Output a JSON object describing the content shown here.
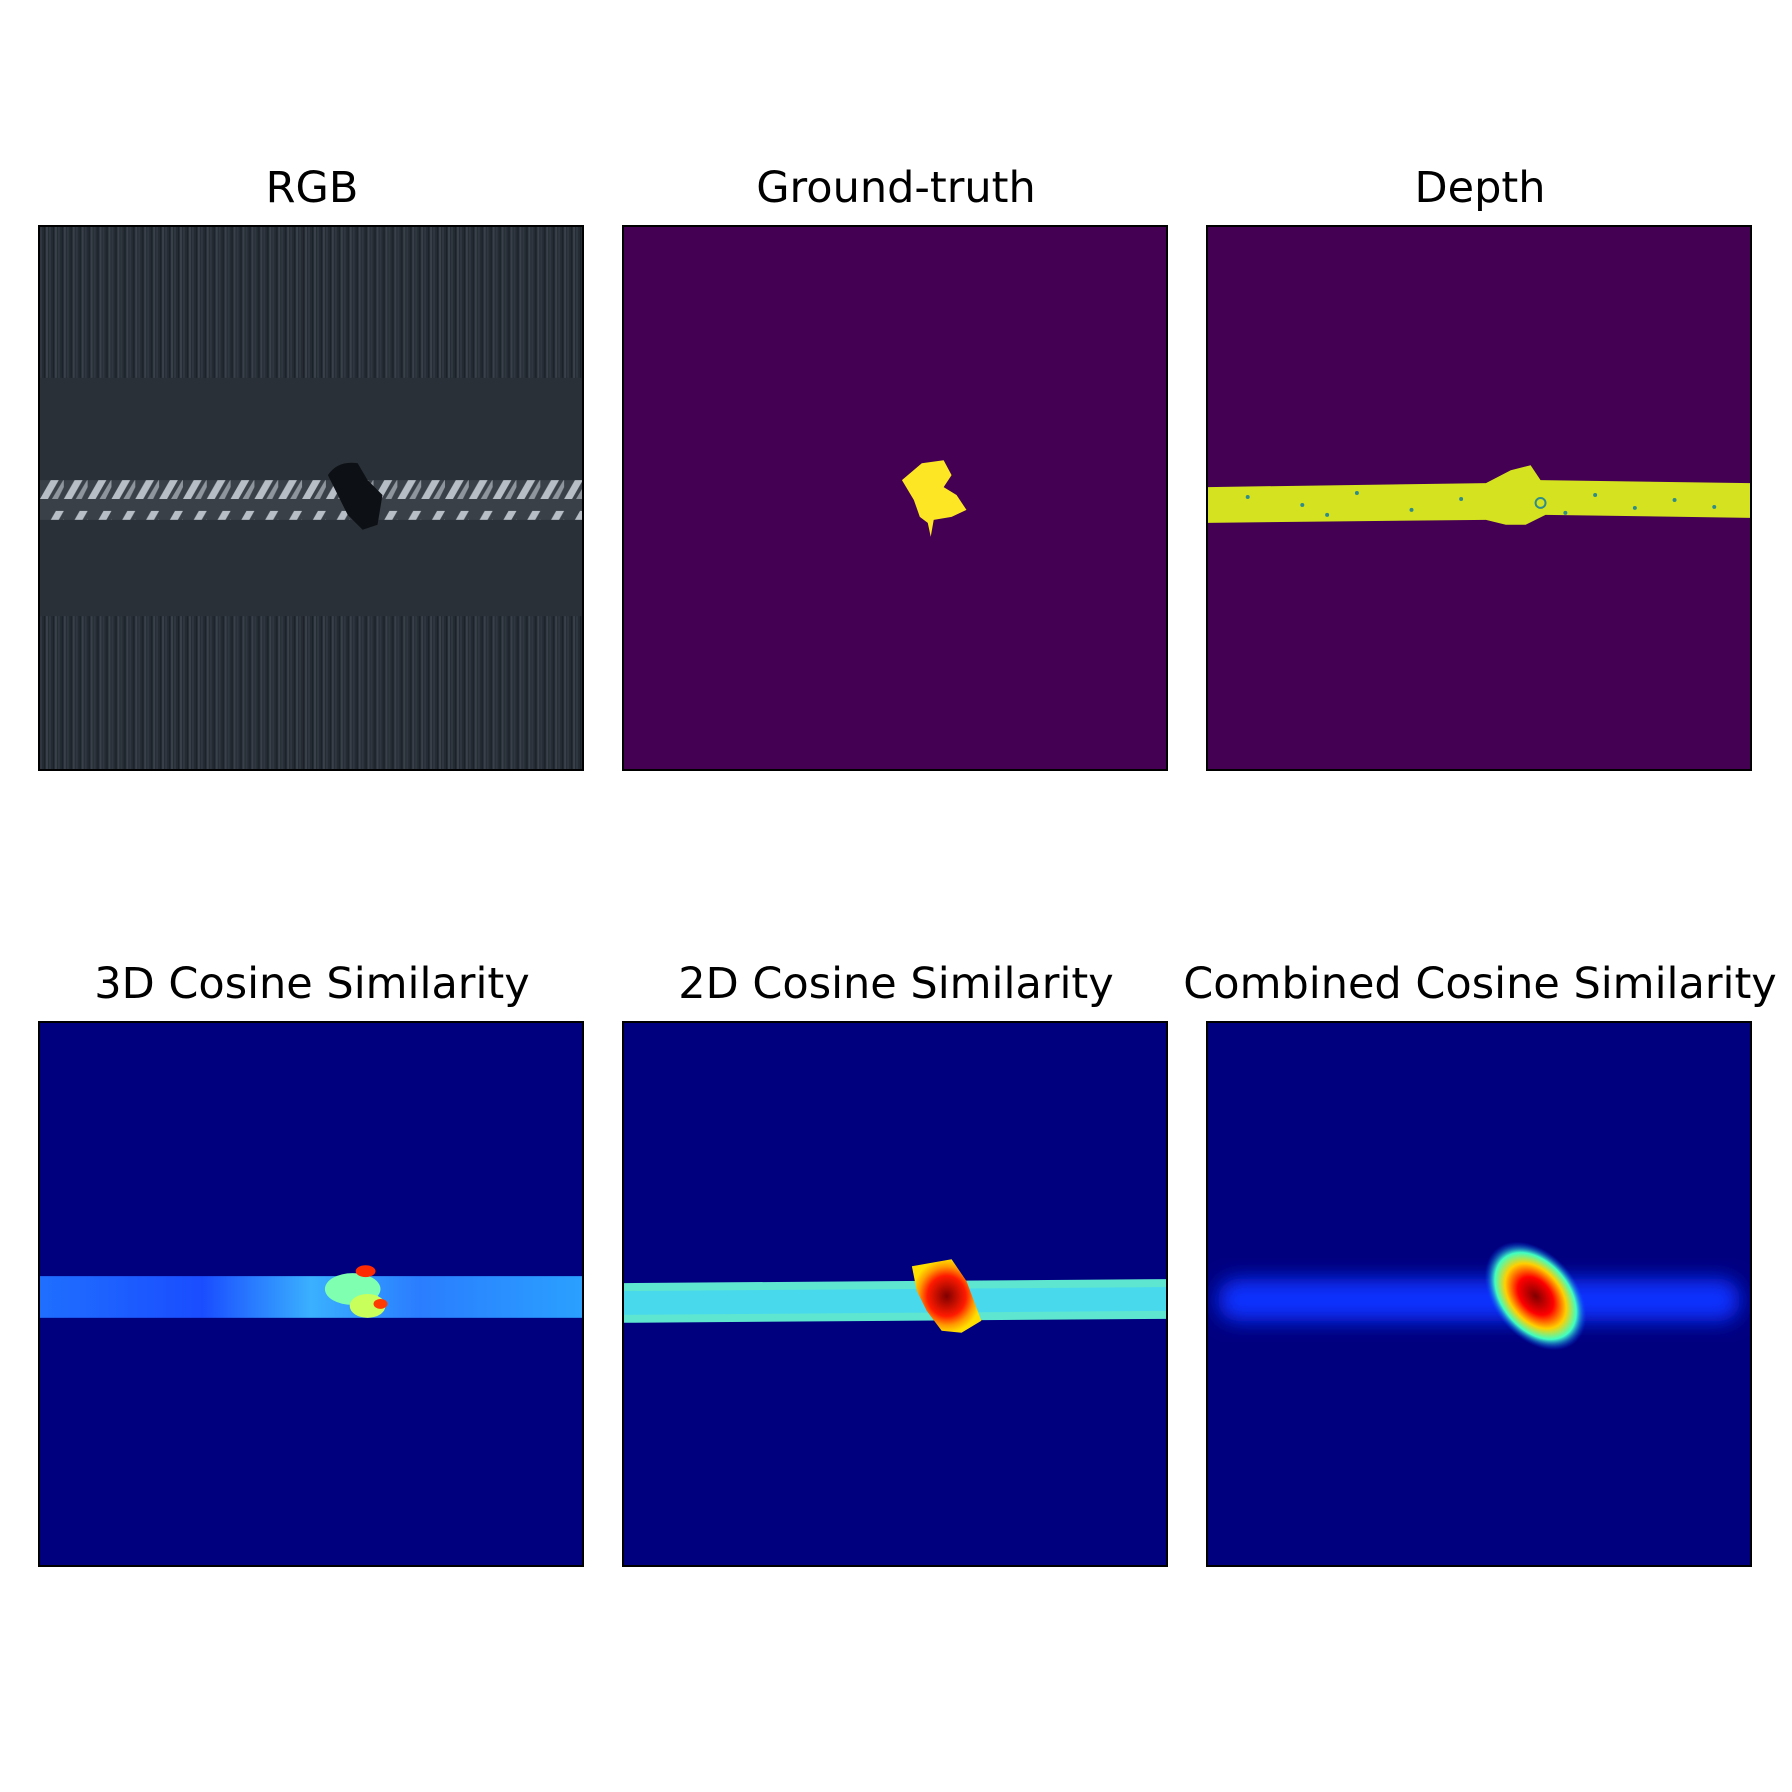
{
  "figure": {
    "panels": [
      {
        "id": "rgb",
        "title": "RGB"
      },
      {
        "id": "ground_truth",
        "title": "Ground-truth"
      },
      {
        "id": "depth",
        "title": "Depth"
      },
      {
        "id": "cos3d",
        "title": "3D Cosine Similarity"
      },
      {
        "id": "cos2d",
        "title": "2D Cosine Similarity"
      },
      {
        "id": "combined",
        "title": "Combined Cosine Similarity"
      }
    ]
  },
  "colors": {
    "viridis_low": "#440154",
    "viridis_high": "#fde725",
    "jet_low": "#00007f",
    "jet_high": "#7f0000",
    "rgb_background": "#20262d"
  }
}
